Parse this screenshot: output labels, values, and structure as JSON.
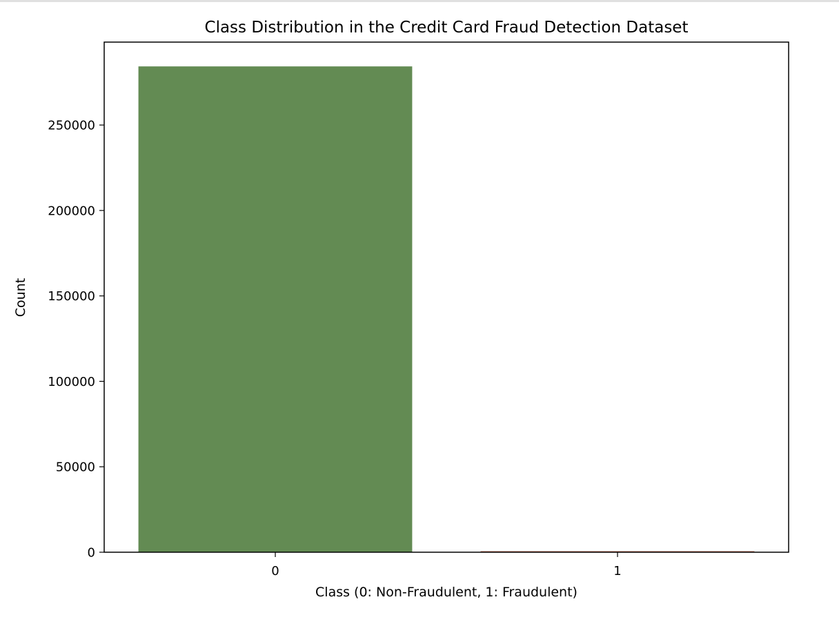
{
  "colors": {
    "background": "#ffffff",
    "axes": "#000000",
    "bar_class_0": "#638b53",
    "bar_class_1": "#b5654d"
  },
  "chart_data": {
    "type": "bar",
    "title": "Class Distribution in the Credit Card Fraud Detection Dataset",
    "xlabel": "Class (0: Non-Fraudulent, 1: Fraudulent)",
    "ylabel": "Count",
    "categories": [
      "0",
      "1"
    ],
    "values": [
      284315,
      492
    ],
    "ylim": [
      0,
      298531
    ],
    "yticks": [
      0,
      50000,
      100000,
      150000,
      200000,
      250000
    ],
    "ytick_labels": [
      "0",
      "50000",
      "100000",
      "150000",
      "200000",
      "250000"
    ],
    "grid": false,
    "legend": null
  }
}
